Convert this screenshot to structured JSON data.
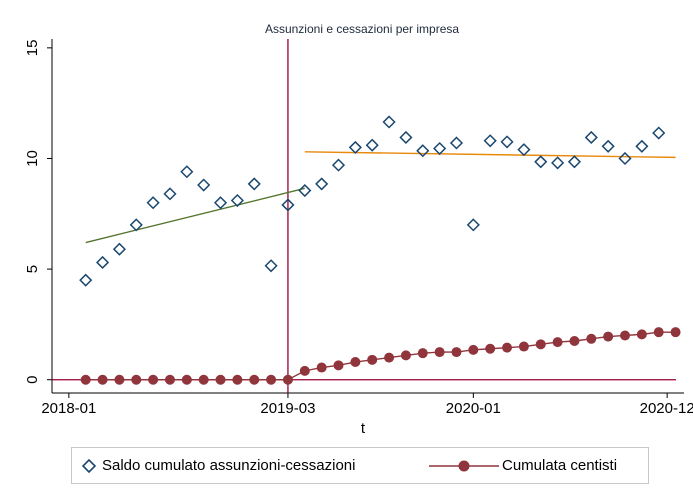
{
  "chart_data": {
    "type": "scatter",
    "title": "Assunzioni e cessazioni per impresa",
    "xlabel": "t",
    "ylabel": "",
    "ylim": [
      -0.6,
      15.4
    ],
    "yticks": [
      0,
      5,
      10,
      15
    ],
    "xlim": [
      -2,
      73
    ],
    "xticks": [
      {
        "x": 0,
        "label": "2018-01"
      },
      {
        "x": 26,
        "label": "2019-03"
      },
      {
        "x": 48,
        "label": "2020-01"
      },
      {
        "x": 71,
        "label": "2020-12"
      }
    ],
    "grid": false,
    "legend_position": "bottom",
    "vline": {
      "x": 26,
      "color": "#990033"
    },
    "hline": {
      "y": 0,
      "color": "#990033"
    },
    "series": [
      {
        "name": "Saldo cumulato assunzioni-cessazioni",
        "kind": "scatter",
        "marker": "diamond",
        "color": "#1a476f",
        "x": [
          2,
          4,
          6,
          8,
          10,
          12,
          14,
          16,
          18,
          20,
          22,
          24,
          26,
          28,
          30,
          32,
          34,
          36,
          38,
          40,
          42,
          44,
          46,
          48,
          50,
          52,
          54,
          56,
          58,
          60,
          62,
          64,
          66,
          68,
          70
        ],
        "y": [
          4.5,
          5.3,
          5.9,
          7.0,
          8.0,
          8.4,
          9.4,
          8.8,
          8.0,
          8.1,
          8.85,
          5.15,
          7.9,
          8.55,
          8.85,
          9.7,
          10.5,
          10.6,
          11.65,
          10.95,
          10.35,
          10.45,
          10.7,
          7.0,
          10.8,
          10.75,
          10.4,
          9.85,
          9.8,
          9.85,
          10.95,
          10.55,
          10.0,
          10.55,
          11.15
        ]
      },
      {
        "name": "Cumulata centisti",
        "kind": "line-marker",
        "marker": "circle",
        "color": "#90353b",
        "x": [
          2,
          4,
          6,
          8,
          10,
          12,
          14,
          16,
          18,
          20,
          22,
          24,
          26,
          28,
          30,
          32,
          34,
          36,
          38,
          40,
          42,
          44,
          46,
          48,
          50,
          52,
          54,
          56,
          58,
          60,
          62,
          64,
          66,
          68,
          70,
          72
        ],
        "y": [
          0,
          0,
          0,
          0,
          0,
          0,
          0,
          0,
          0,
          0,
          0,
          0,
          0,
          0.4,
          0.55,
          0.65,
          0.8,
          0.9,
          1.0,
          1.1,
          1.2,
          1.25,
          1.25,
          1.35,
          1.4,
          1.45,
          1.5,
          1.6,
          1.7,
          1.75,
          1.85,
          1.95,
          2.0,
          2.05,
          2.15,
          2.15
        ]
      }
    ],
    "fit_lines": [
      {
        "color": "#55752f",
        "x": [
          2,
          28
        ],
        "y": [
          6.2,
          8.65
        ]
      },
      {
        "color": "#e8890c",
        "x": [
          28,
          72
        ],
        "y": [
          10.3,
          10.05
        ]
      }
    ],
    "legend": [
      {
        "label": "Saldo cumulato assunzioni-cessazioni",
        "marker": "diamond",
        "color": "#1a476f"
      },
      {
        "label": "Cumulata centisti",
        "marker": "circle",
        "color": "#90353b"
      }
    ]
  }
}
